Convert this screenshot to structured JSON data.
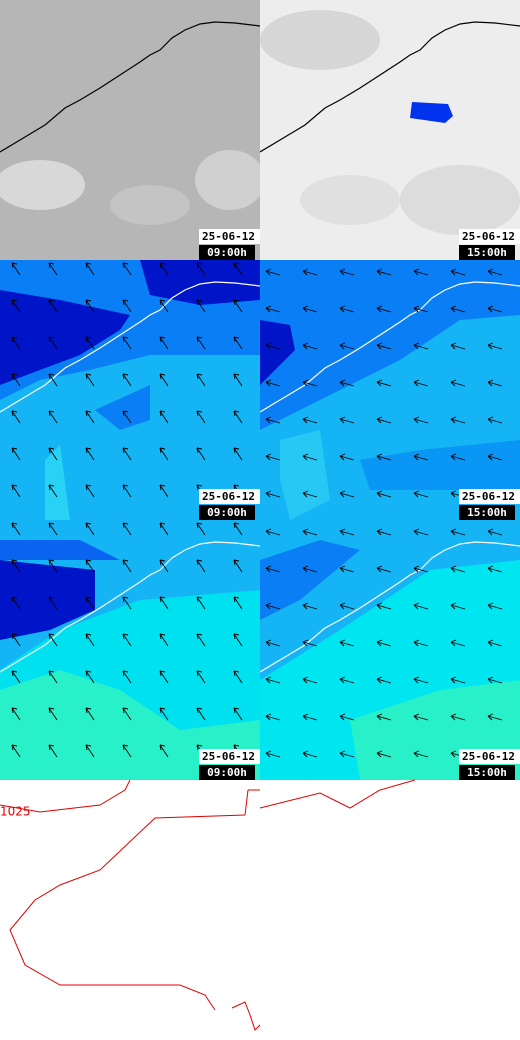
{
  "panels": [
    {
      "date": "25-06-12",
      "time": "09:00h"
    },
    {
      "date": "25-06-12",
      "time": "15:00h"
    },
    {
      "date": "25-06-12",
      "time": "09:00h"
    },
    {
      "date": "25-06-12",
      "time": "15:00h"
    },
    {
      "date": "25-06-12",
      "time": "09:00h"
    },
    {
      "date": "25-06-12",
      "time": "15:00h"
    }
  ],
  "isobar_label": "1025"
}
